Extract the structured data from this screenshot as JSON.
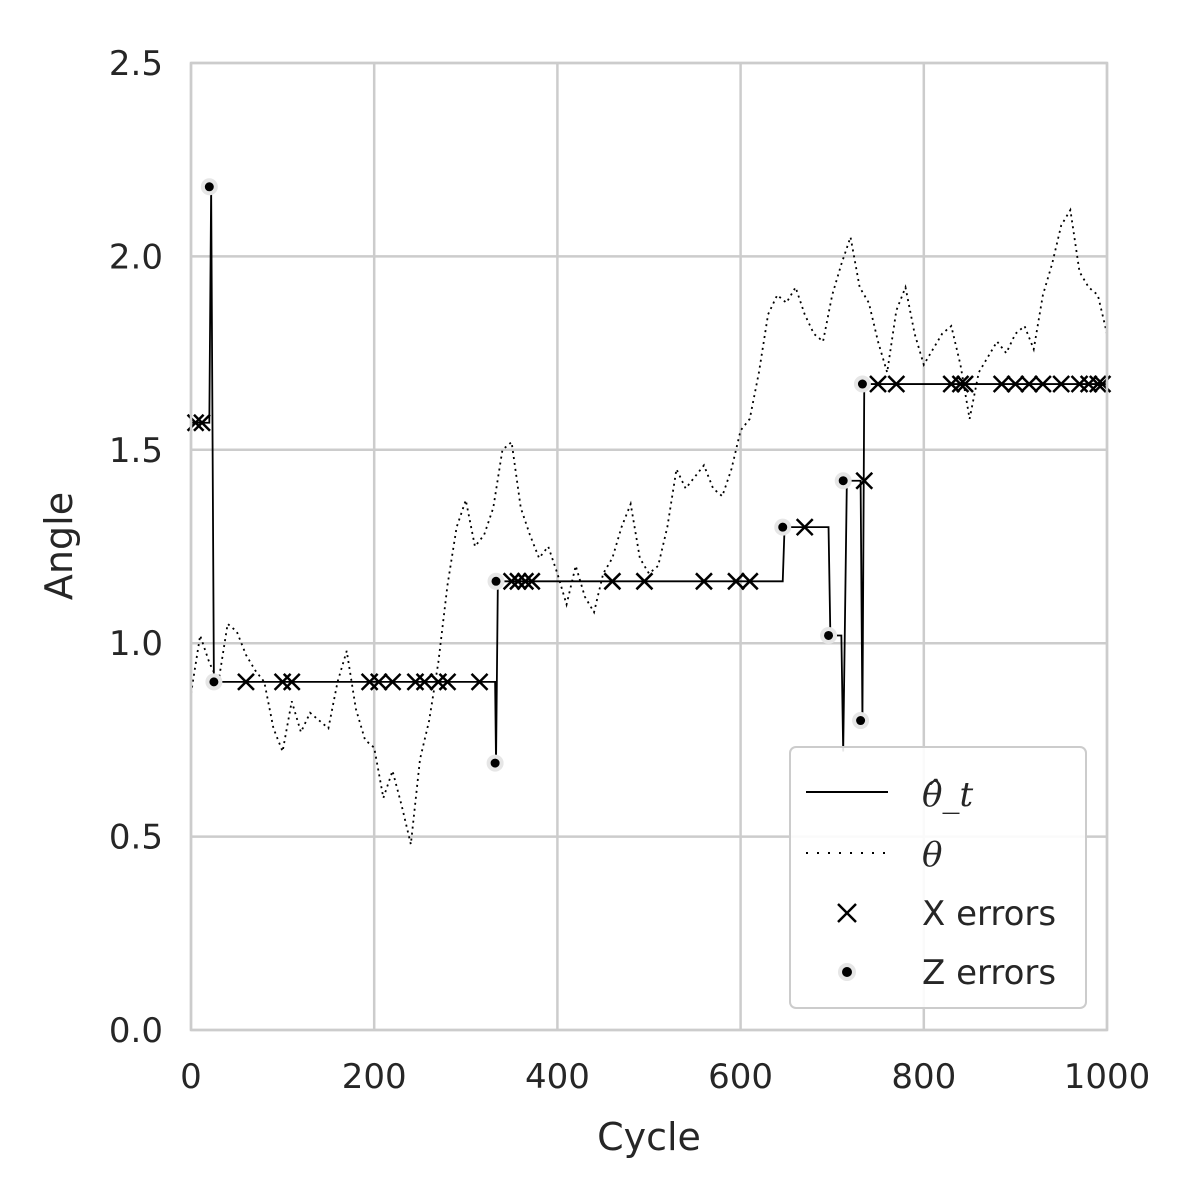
{
  "chart_data": {
    "type": "line",
    "xlabel": "Cycle",
    "ylabel": "Angle",
    "xlim": [
      0,
      1000
    ],
    "ylim": [
      0,
      2.5
    ],
    "xticks": [
      0,
      200,
      400,
      600,
      800,
      1000
    ],
    "xtick_labels": [
      "0",
      "200",
      "400",
      "600",
      "800",
      "1000"
    ],
    "yticks": [
      0.0,
      0.5,
      1.0,
      1.5,
      2.0,
      2.5
    ],
    "ytick_labels": [
      "0.0",
      "0.5",
      "1.0",
      "1.5",
      "2.0",
      "2.5"
    ],
    "grid": true,
    "legend_position": "lower-right",
    "legend": [
      "θ̂_t",
      "θ",
      "X errors",
      "Z errors"
    ],
    "series": [
      {
        "name": "θ̂_t",
        "style": "solid",
        "x": [
          0,
          5,
          12,
          20,
          22,
          25,
          332,
          333,
          335,
          646,
          648,
          696,
          698,
          710,
          712,
          716,
          731,
          733,
          735,
          1000
        ],
        "y": [
          1.57,
          1.57,
          1.57,
          1.57,
          2.18,
          0.9,
          0.9,
          0.69,
          1.16,
          1.16,
          1.3,
          1.3,
          1.02,
          1.02,
          0.72,
          1.42,
          1.42,
          0.8,
          1.67,
          1.67
        ]
      },
      {
        "name": "θ",
        "style": "dotted",
        "x": [
          0,
          10,
          20,
          30,
          40,
          50,
          60,
          70,
          80,
          90,
          100,
          110,
          120,
          130,
          140,
          150,
          160,
          170,
          180,
          190,
          200,
          210,
          220,
          230,
          240,
          250,
          260,
          270,
          280,
          290,
          300,
          310,
          320,
          330,
          340,
          350,
          360,
          370,
          380,
          390,
          400,
          410,
          420,
          430,
          440,
          450,
          460,
          470,
          480,
          490,
          500,
          510,
          520,
          530,
          540,
          550,
          560,
          570,
          580,
          590,
          600,
          610,
          620,
          630,
          640,
          650,
          660,
          670,
          680,
          690,
          700,
          710,
          720,
          730,
          740,
          750,
          760,
          770,
          780,
          790,
          800,
          810,
          820,
          830,
          840,
          850,
          860,
          870,
          880,
          890,
          900,
          910,
          920,
          930,
          940,
          950,
          960,
          970,
          980,
          990,
          1000
        ],
        "y": [
          0.87,
          1.02,
          0.95,
          0.9,
          1.05,
          1.03,
          0.97,
          0.93,
          0.9,
          0.78,
          0.72,
          0.85,
          0.77,
          0.82,
          0.8,
          0.78,
          0.9,
          0.98,
          0.83,
          0.75,
          0.73,
          0.6,
          0.67,
          0.58,
          0.48,
          0.7,
          0.8,
          0.95,
          1.15,
          1.3,
          1.37,
          1.25,
          1.28,
          1.35,
          1.5,
          1.52,
          1.35,
          1.28,
          1.22,
          1.25,
          1.18,
          1.1,
          1.2,
          1.12,
          1.08,
          1.18,
          1.22,
          1.3,
          1.36,
          1.22,
          1.18,
          1.2,
          1.3,
          1.45,
          1.4,
          1.43,
          1.46,
          1.4,
          1.38,
          1.45,
          1.55,
          1.58,
          1.7,
          1.85,
          1.9,
          1.88,
          1.92,
          1.85,
          1.8,
          1.78,
          1.9,
          1.98,
          2.05,
          1.92,
          1.88,
          1.78,
          1.7,
          1.86,
          1.92,
          1.8,
          1.72,
          1.76,
          1.8,
          1.82,
          1.72,
          1.58,
          1.7,
          1.74,
          1.78,
          1.75,
          1.8,
          1.82,
          1.76,
          1.9,
          1.98,
          2.08,
          2.12,
          1.96,
          1.92,
          1.9,
          1.8
        ]
      }
    ],
    "x_errors": {
      "name": "X errors",
      "x": [
        5,
        12,
        60,
        100,
        110,
        195,
        205,
        220,
        245,
        255,
        270,
        280,
        315,
        350,
        357,
        365,
        372,
        460,
        495,
        560,
        595,
        610,
        670,
        735,
        750,
        770,
        830,
        840,
        845,
        885,
        900,
        915,
        930,
        950,
        970,
        980,
        990,
        995
      ],
      "y": [
        1.57,
        1.57,
        0.9,
        0.9,
        0.9,
        0.9,
        0.9,
        0.9,
        0.9,
        0.9,
        0.9,
        0.9,
        0.9,
        1.16,
        1.16,
        1.16,
        1.16,
        1.16,
        1.16,
        1.16,
        1.16,
        1.16,
        1.3,
        1.42,
        1.67,
        1.67,
        1.67,
        1.67,
        1.67,
        1.67,
        1.67,
        1.67,
        1.67,
        1.67,
        1.67,
        1.67,
        1.67,
        1.67
      ]
    },
    "z_errors": {
      "name": "Z errors",
      "x": [
        20,
        25,
        332,
        333,
        646,
        696,
        712,
        731,
        733
      ],
      "y": [
        2.18,
        0.9,
        0.69,
        1.16,
        1.3,
        1.02,
        1.42,
        0.8,
        1.67
      ]
    }
  }
}
